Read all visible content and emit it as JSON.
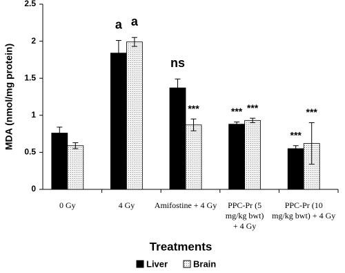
{
  "chart_data": {
    "type": "bar",
    "y_label": "MDA (nmol/mg protein)",
    "x_label": "Treatments",
    "categories": [
      [
        "0 Gy"
      ],
      [
        "4 Gy"
      ],
      [
        "Amifostine + 4 Gy"
      ],
      [
        "PPC-Pr (5",
        "mg/kg bwt)",
        "+ 4 Gy"
      ],
      [
        "PPC-Pr (10",
        "mg/kg bwt) + 4 Gy"
      ]
    ],
    "series": [
      {
        "name": "Liver",
        "color": "#000000",
        "values": [
          0.76,
          1.84,
          1.37,
          0.88,
          0.55
        ],
        "errors": [
          0.08,
          0.17,
          0.12,
          0.03,
          0.04
        ],
        "annotations": [
          null,
          "a",
          "ns",
          "***",
          "***"
        ]
      },
      {
        "name": "Brain",
        "color": "#dcdcdc",
        "values": [
          0.59,
          1.99,
          0.87,
          0.93,
          0.62
        ],
        "errors": [
          0.04,
          0.06,
          0.08,
          0.03,
          0.28
        ],
        "annotations": [
          null,
          "a",
          "***",
          "***",
          "***"
        ]
      }
    ],
    "ylim": [
      0,
      2.5
    ],
    "yticks": [
      0,
      0.5,
      1,
      1.5,
      2,
      2.5
    ],
    "legend": "bottom"
  }
}
